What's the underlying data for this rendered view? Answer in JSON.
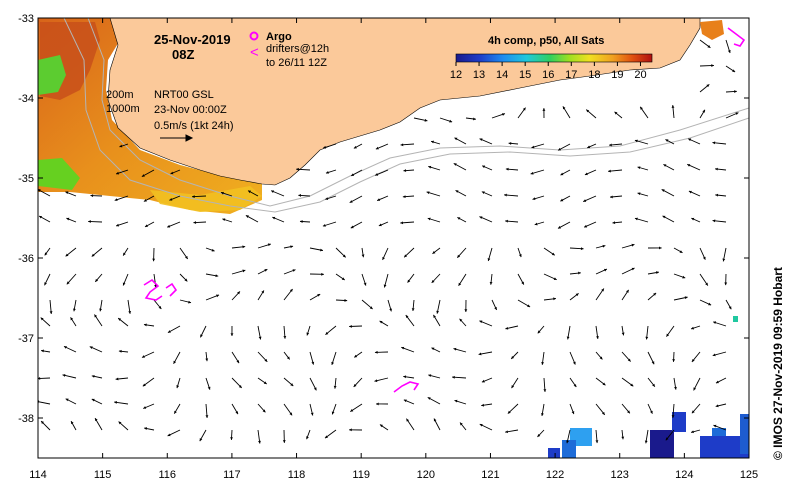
{
  "header": {
    "date": "25-Nov-2019",
    "hour": "08Z"
  },
  "legend": {
    "argo_label": "Argo",
    "drifters_label": "drifters@12h",
    "drifters_to": "to 26/11 12Z",
    "argo_symbol": "circle",
    "drifter_symbol": "<"
  },
  "annotations": {
    "isobath_200": "200m",
    "isobath_1000": "1000m",
    "product": "NRT00 GSL",
    "product_date": "23-Nov 00:00Z",
    "scale_arrow": "0.5m/s (1kt 24h)"
  },
  "colorbar": {
    "title": "4h comp, p50, All Sats",
    "ticks": [
      "12",
      "13",
      "14",
      "15",
      "16",
      "17",
      "18",
      "19",
      "20"
    ],
    "min": 12,
    "max": 20.5
  },
  "axes": {
    "x_ticks": [
      "114",
      "115",
      "116",
      "117",
      "118",
      "119",
      "120",
      "121",
      "122",
      "123",
      "124",
      "125"
    ],
    "y_ticks": [
      "-33",
      "-34",
      "-35",
      "-36",
      "-37",
      "-38"
    ],
    "lon_range": [
      114,
      125
    ],
    "lat_range": [
      -38.5,
      -33
    ]
  },
  "credit": "© IMOS 27-Nov-2019 09:59 Hobart",
  "colors": {
    "land": "#fbc99a",
    "ocean": "#ffffff",
    "drifter": "#ff00ff",
    "frame": "#000000"
  }
}
